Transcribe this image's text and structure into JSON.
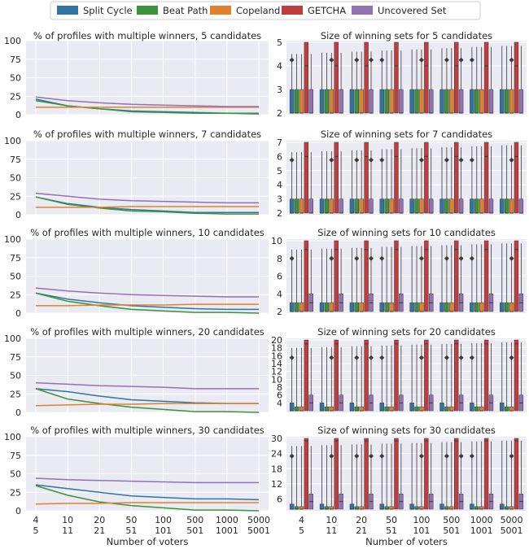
{
  "legend": {
    "items": [
      {
        "label": "Split Cycle",
        "color": "#3274a1"
      },
      {
        "label": "Beat Path",
        "color": "#3a923a"
      },
      {
        "label": "Copeland",
        "color": "#e1812c"
      },
      {
        "label": "GETCHA",
        "color": "#c03d3e"
      },
      {
        "label": "Uncovered Set",
        "color": "#9372b2"
      }
    ]
  },
  "x_tick_labels": [
    [
      "4",
      "5"
    ],
    [
      "10",
      "11"
    ],
    [
      "20",
      "21"
    ],
    [
      "50",
      "51"
    ],
    [
      "100",
      "101"
    ],
    [
      "500",
      "501"
    ],
    [
      "1000",
      "1001"
    ],
    [
      "5000",
      "5001"
    ]
  ],
  "xlabel": "Number of voters",
  "chart_data": [
    {
      "type": "line",
      "title": "% of profiles with multiple winners, 5 candidates",
      "categories": [
        "4/5",
        "10/11",
        "20/21",
        "50/51",
        "100/101",
        "500/501",
        "1000/1001",
        "5000/5001"
      ],
      "ylim": [
        0,
        100
      ],
      "yticks": [
        0,
        25,
        50,
        75,
        100
      ],
      "series": [
        {
          "name": "Split Cycle",
          "values": [
            21,
            12,
            8,
            5,
            4,
            3,
            2,
            2
          ]
        },
        {
          "name": "Beat Path",
          "values": [
            19,
            12,
            8,
            4,
            3,
            2,
            2,
            1
          ]
        },
        {
          "name": "Copeland",
          "values": [
            10,
            10,
            10,
            10,
            10,
            10,
            10,
            10
          ]
        },
        {
          "name": "Uncovered Set",
          "values": [
            24,
            19,
            16,
            14,
            13,
            12,
            11,
            11
          ]
        }
      ]
    },
    {
      "type": "line",
      "title": "% of profiles with multiple winners, 7 candidates",
      "categories": [
        "4/5",
        "10/11",
        "20/21",
        "50/51",
        "100/101",
        "500/501",
        "1000/1001",
        "5000/5001"
      ],
      "ylim": [
        0,
        100
      ],
      "yticks": [
        0,
        25,
        50,
        75,
        100
      ],
      "series": [
        {
          "name": "Split Cycle",
          "values": [
            24,
            15,
            10,
            7,
            5,
            3,
            3,
            3
          ]
        },
        {
          "name": "Beat Path",
          "values": [
            24,
            14,
            9,
            5,
            4,
            2,
            1,
            1
          ]
        },
        {
          "name": "Copeland",
          "values": [
            10,
            10,
            10,
            11,
            11,
            11,
            11,
            11
          ]
        },
        {
          "name": "Uncovered Set",
          "values": [
            29,
            25,
            21,
            19,
            18,
            17,
            16,
            16
          ]
        }
      ]
    },
    {
      "type": "line",
      "title": "% of profiles with multiple winners, 10 candidates",
      "categories": [
        "4/5",
        "10/11",
        "20/21",
        "50/51",
        "100/101",
        "500/501",
        "1000/1001",
        "5000/5001"
      ],
      "ylim": [
        0,
        100
      ],
      "yticks": [
        0,
        25,
        50,
        75,
        100
      ],
      "series": [
        {
          "name": "Split Cycle",
          "values": [
            27,
            19,
            14,
            10,
            8,
            6,
            5,
            5
          ]
        },
        {
          "name": "Beat Path",
          "values": [
            27,
            16,
            10,
            5,
            3,
            1,
            1,
            0
          ]
        },
        {
          "name": "Copeland",
          "values": [
            10,
            10,
            11,
            11,
            11,
            12,
            12,
            12
          ]
        },
        {
          "name": "Uncovered Set",
          "values": [
            34,
            30,
            27,
            25,
            24,
            23,
            22,
            22
          ]
        }
      ]
    },
    {
      "type": "line",
      "title": "% of profiles with multiple winners, 20 candidates",
      "categories": [
        "4/5",
        "10/11",
        "20/21",
        "50/51",
        "100/101",
        "500/501",
        "1000/1001",
        "5000/5001"
      ],
      "ylim": [
        0,
        100
      ],
      "yticks": [
        0,
        25,
        50,
        75,
        100
      ],
      "series": [
        {
          "name": "Split Cycle",
          "values": [
            32,
            28,
            22,
            17,
            15,
            13,
            12,
            12
          ]
        },
        {
          "name": "Beat Path",
          "values": [
            32,
            18,
            12,
            7,
            4,
            1,
            1,
            0
          ]
        },
        {
          "name": "Copeland",
          "values": [
            9,
            10,
            11,
            11,
            12,
            12,
            12,
            12
          ]
        },
        {
          "name": "Uncovered Set",
          "values": [
            40,
            38,
            36,
            35,
            34,
            32,
            32,
            32
          ]
        }
      ]
    },
    {
      "type": "line",
      "title": "% of profiles with multiple winners, 30 candidates",
      "categories": [
        "4/5",
        "10/11",
        "20/21",
        "50/51",
        "100/101",
        "500/501",
        "1000/1001",
        "5000/5001"
      ],
      "ylim": [
        0,
        100
      ],
      "yticks": [
        0,
        25,
        50,
        75,
        100
      ],
      "series": [
        {
          "name": "Split Cycle",
          "values": [
            35,
            30,
            25,
            20,
            18,
            16,
            16,
            15
          ]
        },
        {
          "name": "Beat Path",
          "values": [
            34,
            21,
            12,
            7,
            4,
            1,
            1,
            0
          ]
        },
        {
          "name": "Copeland",
          "values": [
            9,
            10,
            10,
            11,
            11,
            11,
            11,
            11
          ]
        },
        {
          "name": "Uncovered Set",
          "values": [
            44,
            42,
            41,
            40,
            39,
            38,
            38,
            38
          ]
        }
      ]
    },
    {
      "type": "boxen",
      "title": "Size of winning sets for 5 candidates",
      "ylim": [
        2,
        5
      ],
      "yticks": [
        2,
        3,
        4,
        5
      ],
      "median_by_method": {
        "Split Cycle": 2,
        "Beat Path": 2,
        "Copeland": 2,
        "GETCHA": 4,
        "Uncovered Set": 2
      },
      "q3_by_method": {
        "Split Cycle": 3,
        "Beat Path": 3,
        "Copeland": 3,
        "GETCHA": 5,
        "Uncovered Set": 3
      }
    },
    {
      "type": "boxen",
      "title": "Size of winning sets for 7 candidates",
      "ylim": [
        2,
        7
      ],
      "yticks": [
        2,
        3,
        4,
        5,
        6,
        7
      ],
      "median_by_method": {
        "Split Cycle": 2,
        "Beat Path": 2,
        "Copeland": 2,
        "GETCHA": 6,
        "Uncovered Set": 2
      },
      "q3_by_method": {
        "Split Cycle": 3,
        "Beat Path": 3,
        "Copeland": 3,
        "GETCHA": 7,
        "Uncovered Set": 3
      }
    },
    {
      "type": "boxen",
      "title": "Size of winning sets for 10 candidates",
      "ylim": [
        2,
        10
      ],
      "yticks": [
        2,
        4,
        6,
        8,
        10
      ],
      "median_by_method": {
        "Split Cycle": 2,
        "Beat Path": 2,
        "Copeland": 2,
        "GETCHA": 9,
        "Uncovered Set": 3
      },
      "q3_by_method": {
        "Split Cycle": 3,
        "Beat Path": 3,
        "Copeland": 3,
        "GETCHA": 10,
        "Uncovered Set": 4
      }
    },
    {
      "type": "boxen",
      "title": "Size of winning sets for 20 candidates",
      "ylim": [
        2,
        20
      ],
      "yticks": [
        4,
        6,
        8,
        10,
        12,
        14,
        16,
        18,
        20
      ],
      "median_by_method": {
        "Split Cycle": 2,
        "Beat Path": 2,
        "Copeland": 2,
        "GETCHA": 19,
        "Uncovered Set": 4
      },
      "q3_by_method": {
        "Split Cycle": 4,
        "Beat Path": 3,
        "Copeland": 3,
        "GETCHA": 20,
        "Uncovered Set": 6
      }
    },
    {
      "type": "boxen",
      "title": "Size of winning sets for 30 candidates",
      "ylim": [
        2,
        30
      ],
      "yticks": [
        6,
        12,
        18,
        24,
        30
      ],
      "median_by_method": {
        "Split Cycle": 2,
        "Beat Path": 2,
        "Copeland": 2,
        "GETCHA": 29,
        "Uncovered Set": 5
      },
      "q3_by_method": {
        "Split Cycle": 4,
        "Beat Path": 3,
        "Copeland": 3,
        "GETCHA": 30,
        "Uncovered Set": 8
      }
    }
  ]
}
